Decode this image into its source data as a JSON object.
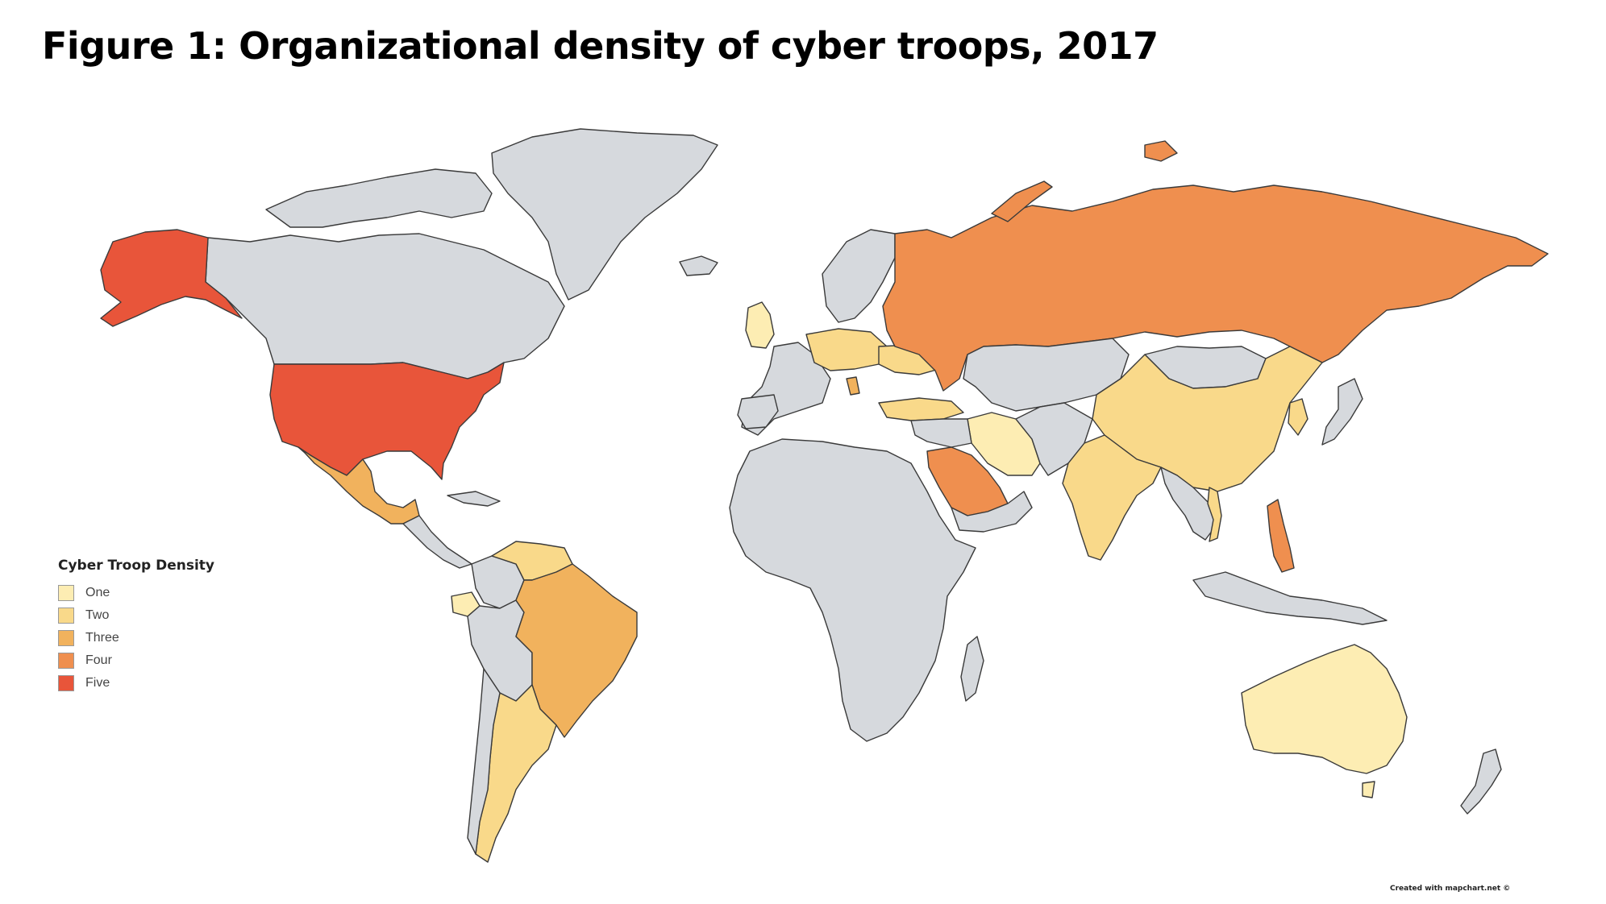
{
  "title": "Figure 1: Organizational density of cyber troops, 2017",
  "legend": {
    "title": "Cyber Troop Density",
    "items": [
      {
        "label": "One",
        "color": "#fdedb3"
      },
      {
        "label": "Two",
        "color": "#f9d98a"
      },
      {
        "label": "Three",
        "color": "#f1b25d"
      },
      {
        "label": "Four",
        "color": "#ef8f4f"
      },
      {
        "label": "Five",
        "color": "#e8553a"
      }
    ]
  },
  "colors": {
    "no_data": "#d6d9dd",
    "ocean": "#ffffff",
    "border": "#3a3a3a"
  },
  "credit": "Created with mapchart.net ©"
}
